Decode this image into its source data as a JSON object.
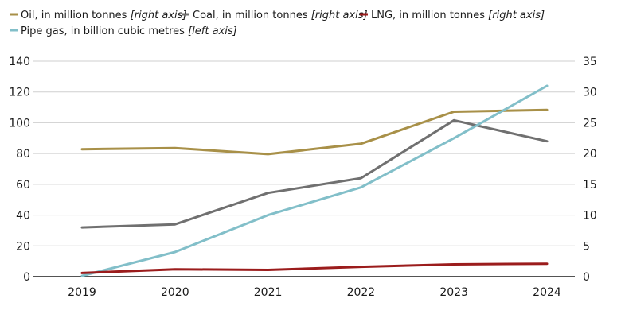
{
  "chart_data": {
    "type": "line",
    "title": "",
    "categories": [
      "2019",
      "2020",
      "2021",
      "2022",
      "2023",
      "2024"
    ],
    "left_axis": {
      "label": "",
      "range": [
        0,
        140
      ],
      "ticks": [
        "0",
        "20",
        "40",
        "60",
        "80",
        "100",
        "120",
        "140"
      ]
    },
    "right_axis": {
      "label": "",
      "range": [
        0,
        35
      ],
      "ticks": [
        "0",
        "5",
        "10",
        "15",
        "20",
        "25",
        "30",
        "35"
      ]
    },
    "grid": true,
    "legend_position": "top-left",
    "series": [
      {
        "name": "Oil, in million tonnes",
        "note": "[right axis]",
        "axis": "right",
        "color": "#a89048",
        "values": [
          20.7,
          20.9,
          19.9,
          21.6,
          26.8,
          27.1
        ]
      },
      {
        "name": "Coal, in million tonnes",
        "note": "[right axis]",
        "axis": "right",
        "color": "#707070",
        "values": [
          8.0,
          8.5,
          13.6,
          16.0,
          25.4,
          22.0
        ]
      },
      {
        "name": "LNG, in million tonnes",
        "note": "[right axis]",
        "axis": "right",
        "color": "#9b1c1c",
        "values": [
          0.6,
          1.2,
          1.1,
          1.6,
          2.0,
          2.1
        ]
      },
      {
        "name": "Pipe gas, in billion cubic metres",
        "note": "[left axis]",
        "axis": "left",
        "color": "#82bfc9",
        "values": [
          0.5,
          16,
          40,
          58,
          90,
          124
        ]
      }
    ]
  }
}
